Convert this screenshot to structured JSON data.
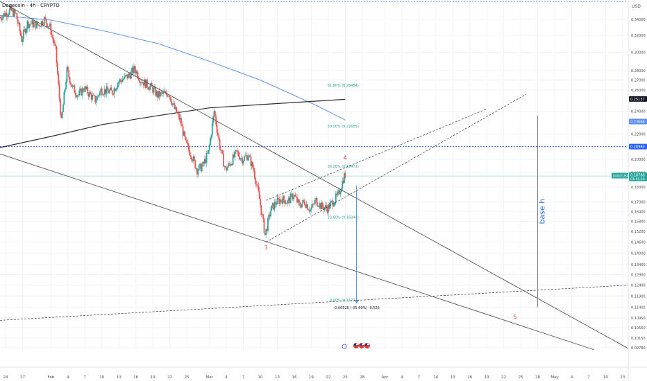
{
  "header": {
    "symbol_line": "Dogecoin · 4h · CRYPTO"
  },
  "colors": {
    "up": "#26a69a",
    "down": "#ef5350",
    "ma_blue": "#5b8def",
    "ma_dark": "#2b2b2b",
    "trend": "#555555",
    "fib_text": "#26a69a",
    "wave": "#e53935",
    "grid": "#f0f3fa",
    "axis_text": "#4a4a4a",
    "dotted": "#2962ff",
    "measure": "#2f76e0"
  },
  "chart_data": {
    "type": "candlestick",
    "title": "",
    "xlabel": "",
    "ylabel": "",
    "price_unit": "USD",
    "y_scale": "log",
    "ylim": [
      0.097,
      0.364
    ],
    "x_range": [
      "2025-01-23",
      "2025-05-14"
    ],
    "grid": true,
    "y_ticks": [
      "0.34000",
      "0.32000",
      "0.30000",
      "0.28000",
      "0.27000",
      "0.26000",
      "0.24000",
      "0.22000",
      "0.21000",
      "0.20000",
      "0.19000",
      "0.18000",
      "0.17000",
      "0.16400",
      "0.15800",
      "0.15200",
      "0.14600",
      "0.14000",
      "0.13400",
      "0.12900",
      "0.12400",
      "0.11900",
      "0.11400",
      "0.10950",
      "0.10550",
      "0.10150",
      "0.09780"
    ],
    "y_tick_values": [
      0.34,
      0.32,
      0.3,
      0.28,
      0.27,
      0.26,
      0.24,
      0.22,
      0.21,
      0.2,
      0.19,
      0.18,
      0.17,
      0.164,
      0.158,
      0.152,
      0.146,
      0.14,
      0.134,
      0.129,
      0.124,
      0.119,
      0.114,
      0.1095,
      0.1055,
      0.1015,
      0.0978
    ],
    "x_ticks": [
      {
        "label": "24",
        "date": "2025-01-24"
      },
      {
        "label": "27",
        "date": "2025-01-27"
      },
      {
        "label": "Feb",
        "date": "2025-02-01"
      },
      {
        "label": "4",
        "date": "2025-02-04"
      },
      {
        "label": "7",
        "date": "2025-02-07"
      },
      {
        "label": "10",
        "date": "2025-02-10"
      },
      {
        "label": "13",
        "date": "2025-02-13"
      },
      {
        "label": "16",
        "date": "2025-02-16"
      },
      {
        "label": "19",
        "date": "2025-02-19"
      },
      {
        "label": "22",
        "date": "2025-02-22"
      },
      {
        "label": "25",
        "date": "2025-02-25"
      },
      {
        "label": "Mar",
        "date": "2025-03-01"
      },
      {
        "label": "4",
        "date": "2025-03-04"
      },
      {
        "label": "7",
        "date": "2025-03-07"
      },
      {
        "label": "10",
        "date": "2025-03-10"
      },
      {
        "label": "13",
        "date": "2025-03-13"
      },
      {
        "label": "16",
        "date": "2025-03-16"
      },
      {
        "label": "19",
        "date": "2025-03-19"
      },
      {
        "label": "22",
        "date": "2025-03-22"
      },
      {
        "label": "25",
        "date": "2025-03-25"
      },
      {
        "label": "28",
        "date": "2025-03-28"
      },
      {
        "label": "Apr",
        "date": "2025-04-01"
      },
      {
        "label": "4",
        "date": "2025-04-04"
      },
      {
        "label": "7",
        "date": "2025-04-07"
      },
      {
        "label": "10",
        "date": "2025-04-10"
      },
      {
        "label": "13",
        "date": "2025-04-13"
      },
      {
        "label": "16",
        "date": "2025-04-16"
      },
      {
        "label": "19",
        "date": "2025-04-19"
      },
      {
        "label": "22",
        "date": "2025-04-22"
      },
      {
        "label": "25",
        "date": "2025-04-25"
      },
      {
        "label": "28",
        "date": "2025-04-28"
      },
      {
        "label": "May",
        "date": "2025-05-01"
      },
      {
        "label": "4",
        "date": "2025-05-04"
      },
      {
        "label": "7",
        "date": "2025-05-07"
      },
      {
        "label": "10",
        "date": "2025-05-10"
      },
      {
        "label": "13",
        "date": "2025-05-13"
      }
    ],
    "price_path": [
      {
        "d": "2025-01-23",
        "p": 0.342
      },
      {
        "d": "2025-01-25",
        "p": 0.352
      },
      {
        "d": "2025-01-26",
        "p": 0.346
      },
      {
        "d": "2025-01-27",
        "p": 0.315
      },
      {
        "d": "2025-01-28",
        "p": 0.335
      },
      {
        "d": "2025-01-30",
        "p": 0.333
      },
      {
        "d": "2025-01-31",
        "p": 0.34
      },
      {
        "d": "2025-02-01",
        "p": 0.33
      },
      {
        "d": "2025-02-02",
        "p": 0.302
      },
      {
        "d": "2025-02-03",
        "p": 0.23
      },
      {
        "d": "2025-02-04",
        "p": 0.28
      },
      {
        "d": "2025-02-05",
        "p": 0.262
      },
      {
        "d": "2025-02-06",
        "p": 0.255
      },
      {
        "d": "2025-02-07",
        "p": 0.262
      },
      {
        "d": "2025-02-09",
        "p": 0.25
      },
      {
        "d": "2025-02-10",
        "p": 0.26
      },
      {
        "d": "2025-02-12",
        "p": 0.258
      },
      {
        "d": "2025-02-13",
        "p": 0.268
      },
      {
        "d": "2025-02-15",
        "p": 0.275
      },
      {
        "d": "2025-02-16",
        "p": 0.282
      },
      {
        "d": "2025-02-17",
        "p": 0.27
      },
      {
        "d": "2025-02-19",
        "p": 0.262
      },
      {
        "d": "2025-02-20",
        "p": 0.255
      },
      {
        "d": "2025-02-22",
        "p": 0.257
      },
      {
        "d": "2025-02-23",
        "p": 0.242
      },
      {
        "d": "2025-02-24",
        "p": 0.232
      },
      {
        "d": "2025-02-25",
        "p": 0.212
      },
      {
        "d": "2025-02-26",
        "p": 0.203
      },
      {
        "d": "2025-02-27",
        "p": 0.192
      },
      {
        "d": "2025-02-28",
        "p": 0.195
      },
      {
        "d": "2025-03-01",
        "p": 0.205
      },
      {
        "d": "2025-03-02",
        "p": 0.24
      },
      {
        "d": "2025-03-03",
        "p": 0.21
      },
      {
        "d": "2025-03-04",
        "p": 0.192
      },
      {
        "d": "2025-03-05",
        "p": 0.198
      },
      {
        "d": "2025-03-06",
        "p": 0.205
      },
      {
        "d": "2025-03-07",
        "p": 0.2
      },
      {
        "d": "2025-03-08",
        "p": 0.203
      },
      {
        "d": "2025-03-09",
        "p": 0.192
      },
      {
        "d": "2025-03-10",
        "p": 0.172
      },
      {
        "d": "2025-03-11",
        "p": 0.15
      },
      {
        "d": "2025-03-12",
        "p": 0.165
      },
      {
        "d": "2025-03-13",
        "p": 0.17
      },
      {
        "d": "2025-03-14",
        "p": 0.172
      },
      {
        "d": "2025-03-15",
        "p": 0.17
      },
      {
        "d": "2025-03-16",
        "p": 0.175
      },
      {
        "d": "2025-03-17",
        "p": 0.168
      },
      {
        "d": "2025-03-18",
        "p": 0.17
      },
      {
        "d": "2025-03-19",
        "p": 0.165
      },
      {
        "d": "2025-03-20",
        "p": 0.171
      },
      {
        "d": "2025-03-21",
        "p": 0.167
      },
      {
        "d": "2025-03-22",
        "p": 0.166
      },
      {
        "d": "2025-03-23",
        "p": 0.17
      },
      {
        "d": "2025-03-24",
        "p": 0.175
      },
      {
        "d": "2025-03-25",
        "p": 0.188
      }
    ],
    "moving_averages": [
      {
        "name": "ma_blue",
        "color": "#5b8def",
        "points": [
          {
            "d": "2025-01-23",
            "p": 0.345
          },
          {
            "d": "2025-02-01",
            "p": 0.339
          },
          {
            "d": "2025-02-10",
            "p": 0.326
          },
          {
            "d": "2025-02-20",
            "p": 0.31
          },
          {
            "d": "2025-03-01",
            "p": 0.29
          },
          {
            "d": "2025-03-10",
            "p": 0.27
          },
          {
            "d": "2025-03-20",
            "p": 0.245
          },
          {
            "d": "2025-03-25",
            "p": 0.232
          }
        ]
      },
      {
        "name": "ma_dark",
        "color": "#2b2b2b",
        "points": [
          {
            "d": "2025-01-23",
            "p": 0.209
          },
          {
            "d": "2025-02-01",
            "p": 0.218
          },
          {
            "d": "2025-02-10",
            "p": 0.228
          },
          {
            "d": "2025-02-20",
            "p": 0.236
          },
          {
            "d": "2025-03-01",
            "p": 0.243
          },
          {
            "d": "2025-03-10",
            "p": 0.246
          },
          {
            "d": "2025-03-25",
            "p": 0.251
          }
        ]
      }
    ],
    "trendlines": [
      {
        "from": {
          "d": "2025-01-23",
          "p": 0.364
        },
        "to": {
          "d": "2025-05-14",
          "p": 0.0975
        },
        "style": "solid"
      },
      {
        "from": {
          "d": "2025-01-23",
          "p": 0.204
        },
        "to": {
          "d": "2025-05-08",
          "p": 0.097
        },
        "style": "solid"
      },
      {
        "from": {
          "d": "2025-03-11",
          "p": 0.146
        },
        "to": {
          "d": "2025-04-26",
          "p": 0.256
        },
        "style": "dashed"
      },
      {
        "from": {
          "d": "2025-03-11",
          "p": 0.171
        },
        "to": {
          "d": "2025-04-19",
          "p": 0.242
        },
        "style": "dashed"
      },
      {
        "from": {
          "d": "2025-01-23",
          "p": 0.1085
        },
        "to": {
          "d": "2025-05-14",
          "p": 0.124
        },
        "style": "dashed"
      }
    ],
    "fib_levels": [
      {
        "label": "61.80% (0.26484)",
        "value": 0.26484
      },
      {
        "label": "50.00% (0.22685)",
        "value": 0.22685
      },
      {
        "label": "38.20% (0.19471)",
        "value": 0.19471
      },
      {
        "label": "23.60% (0.16044)",
        "value": 0.16044
      },
      {
        "label": "0.00% (0.11722)",
        "value": 0.11722
      }
    ],
    "fib_start_date": "2025-03-28",
    "wave_labels": [
      {
        "label": "3",
        "d": "2025-03-11",
        "p": 0.142
      },
      {
        "label": "4",
        "d": "2025-03-25",
        "p": 0.1995
      },
      {
        "label": "5",
        "d": "2025-04-24",
        "p": 0.109
      }
    ],
    "measure": {
      "d": "2025-03-27",
      "from": 0.181,
      "to": 0.116,
      "label": "-0.06525 (-35.69%) -0.525"
    },
    "base_h": {
      "label": "base h",
      "d": "2025-04-28",
      "from": 0.236,
      "to": 0.114
    },
    "hlines": [
      {
        "value": 0.364,
        "style": "dotted",
        "label": ""
      },
      {
        "value": 0.2098,
        "style": "dotted",
        "label": "0.20980"
      },
      {
        "value": 0.1876,
        "style": "thin",
        "label": ""
      }
    ],
    "price_labels": [
      {
        "text": "0.25137",
        "value": 0.25137,
        "bg": "#131722",
        "fg": "#ffffff"
      },
      {
        "text": "0.23066",
        "value": 0.23066,
        "bg": "#5b8def",
        "fg": "#ffffff"
      },
      {
        "text": "0.20980",
        "value": 0.2098,
        "bg": "#2962ff",
        "fg": "#ffffff"
      }
    ],
    "symbol_tag": {
      "ticker": "DOGEUSD",
      "price": "0.18788",
      "countdown": "01:41:39",
      "value": 0.18788,
      "bg": "#26a69a"
    },
    "axis_unit_label": "USD"
  }
}
